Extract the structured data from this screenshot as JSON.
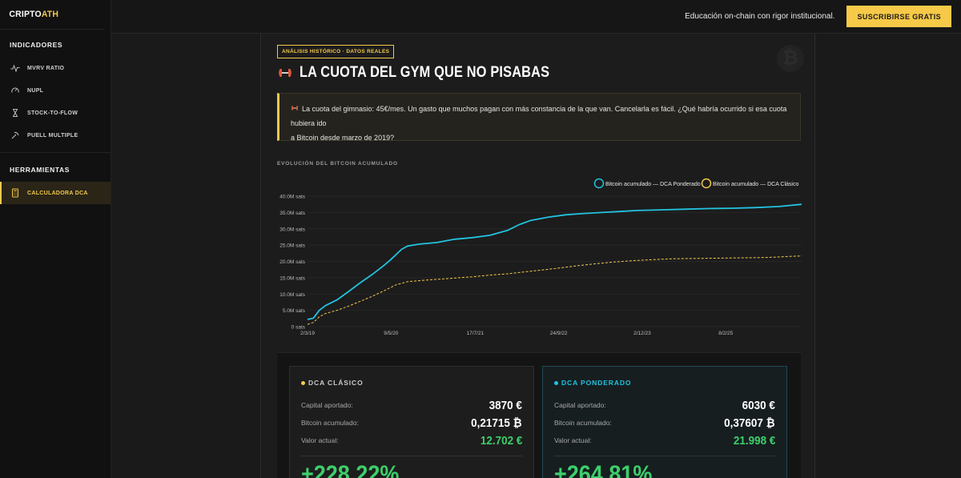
{
  "logo": {
    "part1": "CRIPTO",
    "part2": "ATH"
  },
  "sidebar": {
    "section1": "INDICADORES",
    "items": [
      {
        "label": "MVRV RATIO",
        "icon": "pulse-icon"
      },
      {
        "label": "NUPL",
        "icon": "gauge-icon"
      },
      {
        "label": "STOCK-TO-FLOW",
        "icon": "hourglass-icon"
      },
      {
        "label": "PUELL MULTIPLE",
        "icon": "pickaxe-icon"
      }
    ],
    "section2": "HERRAMIENTAS",
    "tools": [
      {
        "label": "CALCULADORA DCA",
        "icon": "calculator-icon",
        "active": true
      }
    ]
  },
  "topbar": {
    "tagline": "Educación on-chain con rigor institucional.",
    "cta": "SUSCRIBIRSE GRATIS"
  },
  "article": {
    "badge": "ANÁLISIS HISTÓRICO · DATOS REALES",
    "title": "LA CUOTA DEL GYM QUE NO PISABAS",
    "quote_line1": "La cuota del gimnasio: 45€/mes. Un gasto que muchos pagan con más constancia de la que van. Cancelarla es fácil. ¿Qué habría ocurrido si esa cuota hubiera ido",
    "quote_line2": "a Bitcoin desde marzo de 2019?",
    "chart_heading": "EVOLUCIÓN DEL BITCOIN ACUMULADO"
  },
  "colors": {
    "accent": "#f2c94c",
    "cyan": "#22c3e0",
    "green": "#3ccf6a"
  },
  "chart_data": {
    "type": "line",
    "ylim": [
      0,
      40
    ],
    "yticks": [
      "0 sats",
      "5.0M sats",
      "10.0M sats",
      "15.0M sats",
      "20.0M sats",
      "25.0M sats",
      "30.0M sats",
      "35.0M sats",
      "40.0M sats"
    ],
    "xticks": [
      "2/3/19",
      "9/5/20",
      "17/7/21",
      "24/9/22",
      "2/12/23",
      "8/2/25"
    ],
    "x_range": [
      0,
      84
    ],
    "xtick_positions": [
      0,
      14.2,
      28.5,
      42.7,
      56.9,
      71.1
    ],
    "series": [
      {
        "name": "Bitcoin acumulado — DCA Ponderado",
        "color": "#22c3e0",
        "style": "solid",
        "x": [
          0,
          1,
          2,
          3,
          5,
          7,
          9,
          11,
          13,
          14,
          15,
          16,
          17,
          19,
          22,
          25,
          28,
          31,
          34,
          36,
          38,
          41,
          44,
          47,
          50,
          53,
          56,
          60,
          64,
          68,
          72,
          76,
          80,
          84
        ],
        "y": [
          2.2,
          2.6,
          5.0,
          6.4,
          8.2,
          10.8,
          13.5,
          16.0,
          18.8,
          20.3,
          22.0,
          23.7,
          24.7,
          25.3,
          25.8,
          26.8,
          27.3,
          28.0,
          29.5,
          31.3,
          32.6,
          33.6,
          34.3,
          34.7,
          35.0,
          35.3,
          35.6,
          35.8,
          36.0,
          36.2,
          36.3,
          36.5,
          36.8,
          37.5
        ]
      },
      {
        "name": "Bitcoin acumulado — DCA Clásico",
        "color": "#f2c94c",
        "style": "dashed",
        "x": [
          0,
          1,
          2,
          3,
          5,
          7,
          9,
          11,
          13,
          15,
          17,
          19,
          22,
          25,
          28,
          31,
          34,
          37,
          40,
          43,
          46,
          49,
          52,
          55,
          58,
          62,
          66,
          70,
          74,
          78,
          84
        ],
        "y": [
          0.7,
          1.3,
          3.0,
          4.0,
          5.0,
          6.3,
          7.8,
          9.3,
          11.0,
          12.8,
          13.8,
          14.1,
          14.5,
          14.9,
          15.3,
          15.8,
          16.2,
          16.8,
          17.4,
          18.0,
          18.7,
          19.3,
          19.8,
          20.2,
          20.5,
          20.8,
          20.9,
          21.0,
          21.1,
          21.2,
          21.7
        ]
      }
    ]
  },
  "cards": {
    "classic": {
      "title": "DCA CLÁSICO",
      "capital_label": "Capital aportado:",
      "capital_value": "3870 €",
      "btc_label": "Bitcoin acumulado:",
      "btc_value": "0,21715 ₿",
      "current_label": "Valor actual:",
      "current_value": "12.702 €",
      "return": "+228.22%"
    },
    "weighted": {
      "title": "DCA PONDERADO",
      "capital_label": "Capital aportado:",
      "capital_value": "6030 €",
      "btc_label": "Bitcoin acumulado:",
      "btc_value": "0,37607 ₿",
      "current_label": "Valor actual:",
      "current_value": "21.998 €",
      "return": "+264.81%"
    }
  }
}
